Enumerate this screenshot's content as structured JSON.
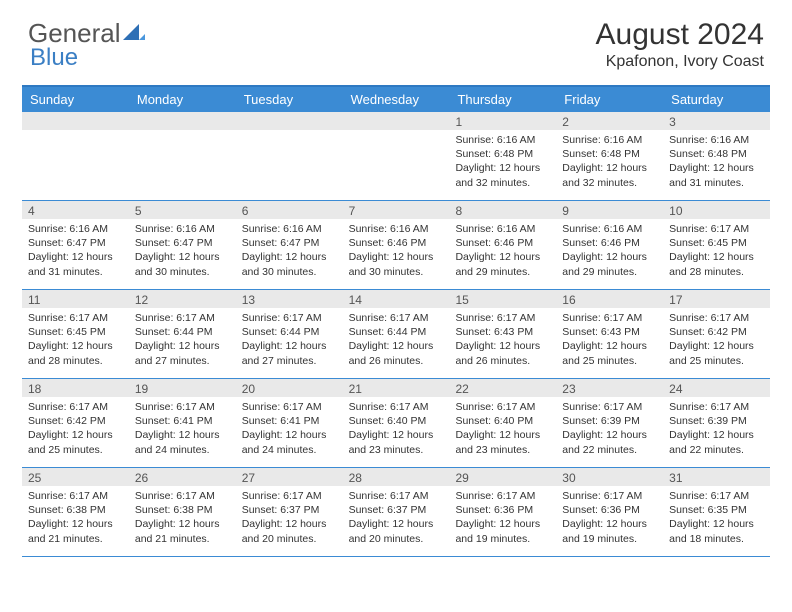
{
  "brand": {
    "part1": "General",
    "part2": "Blue"
  },
  "title": "August 2024",
  "location": "Kpafonon, Ivory Coast",
  "colors": {
    "header_bar": "#3b8bd4",
    "rule": "#2e79c2",
    "daynum_bg": "#e9e9e9",
    "text": "#333333",
    "brand_blue": "#3b7fc4"
  },
  "dow": [
    "Sunday",
    "Monday",
    "Tuesday",
    "Wednesday",
    "Thursday",
    "Friday",
    "Saturday"
  ],
  "weeks": [
    [
      {
        "n": "",
        "sr": "",
        "ss": "",
        "dl": ""
      },
      {
        "n": "",
        "sr": "",
        "ss": "",
        "dl": ""
      },
      {
        "n": "",
        "sr": "",
        "ss": "",
        "dl": ""
      },
      {
        "n": "",
        "sr": "",
        "ss": "",
        "dl": ""
      },
      {
        "n": "1",
        "sr": "Sunrise: 6:16 AM",
        "ss": "Sunset: 6:48 PM",
        "dl": "Daylight: 12 hours and 32 minutes."
      },
      {
        "n": "2",
        "sr": "Sunrise: 6:16 AM",
        "ss": "Sunset: 6:48 PM",
        "dl": "Daylight: 12 hours and 32 minutes."
      },
      {
        "n": "3",
        "sr": "Sunrise: 6:16 AM",
        "ss": "Sunset: 6:48 PM",
        "dl": "Daylight: 12 hours and 31 minutes."
      }
    ],
    [
      {
        "n": "4",
        "sr": "Sunrise: 6:16 AM",
        "ss": "Sunset: 6:47 PM",
        "dl": "Daylight: 12 hours and 31 minutes."
      },
      {
        "n": "5",
        "sr": "Sunrise: 6:16 AM",
        "ss": "Sunset: 6:47 PM",
        "dl": "Daylight: 12 hours and 30 minutes."
      },
      {
        "n": "6",
        "sr": "Sunrise: 6:16 AM",
        "ss": "Sunset: 6:47 PM",
        "dl": "Daylight: 12 hours and 30 minutes."
      },
      {
        "n": "7",
        "sr": "Sunrise: 6:16 AM",
        "ss": "Sunset: 6:46 PM",
        "dl": "Daylight: 12 hours and 30 minutes."
      },
      {
        "n": "8",
        "sr": "Sunrise: 6:16 AM",
        "ss": "Sunset: 6:46 PM",
        "dl": "Daylight: 12 hours and 29 minutes."
      },
      {
        "n": "9",
        "sr": "Sunrise: 6:16 AM",
        "ss": "Sunset: 6:46 PM",
        "dl": "Daylight: 12 hours and 29 minutes."
      },
      {
        "n": "10",
        "sr": "Sunrise: 6:17 AM",
        "ss": "Sunset: 6:45 PM",
        "dl": "Daylight: 12 hours and 28 minutes."
      }
    ],
    [
      {
        "n": "11",
        "sr": "Sunrise: 6:17 AM",
        "ss": "Sunset: 6:45 PM",
        "dl": "Daylight: 12 hours and 28 minutes."
      },
      {
        "n": "12",
        "sr": "Sunrise: 6:17 AM",
        "ss": "Sunset: 6:44 PM",
        "dl": "Daylight: 12 hours and 27 minutes."
      },
      {
        "n": "13",
        "sr": "Sunrise: 6:17 AM",
        "ss": "Sunset: 6:44 PM",
        "dl": "Daylight: 12 hours and 27 minutes."
      },
      {
        "n": "14",
        "sr": "Sunrise: 6:17 AM",
        "ss": "Sunset: 6:44 PM",
        "dl": "Daylight: 12 hours and 26 minutes."
      },
      {
        "n": "15",
        "sr": "Sunrise: 6:17 AM",
        "ss": "Sunset: 6:43 PM",
        "dl": "Daylight: 12 hours and 26 minutes."
      },
      {
        "n": "16",
        "sr": "Sunrise: 6:17 AM",
        "ss": "Sunset: 6:43 PM",
        "dl": "Daylight: 12 hours and 25 minutes."
      },
      {
        "n": "17",
        "sr": "Sunrise: 6:17 AM",
        "ss": "Sunset: 6:42 PM",
        "dl": "Daylight: 12 hours and 25 minutes."
      }
    ],
    [
      {
        "n": "18",
        "sr": "Sunrise: 6:17 AM",
        "ss": "Sunset: 6:42 PM",
        "dl": "Daylight: 12 hours and 25 minutes."
      },
      {
        "n": "19",
        "sr": "Sunrise: 6:17 AM",
        "ss": "Sunset: 6:41 PM",
        "dl": "Daylight: 12 hours and 24 minutes."
      },
      {
        "n": "20",
        "sr": "Sunrise: 6:17 AM",
        "ss": "Sunset: 6:41 PM",
        "dl": "Daylight: 12 hours and 24 minutes."
      },
      {
        "n": "21",
        "sr": "Sunrise: 6:17 AM",
        "ss": "Sunset: 6:40 PM",
        "dl": "Daylight: 12 hours and 23 minutes."
      },
      {
        "n": "22",
        "sr": "Sunrise: 6:17 AM",
        "ss": "Sunset: 6:40 PM",
        "dl": "Daylight: 12 hours and 23 minutes."
      },
      {
        "n": "23",
        "sr": "Sunrise: 6:17 AM",
        "ss": "Sunset: 6:39 PM",
        "dl": "Daylight: 12 hours and 22 minutes."
      },
      {
        "n": "24",
        "sr": "Sunrise: 6:17 AM",
        "ss": "Sunset: 6:39 PM",
        "dl": "Daylight: 12 hours and 22 minutes."
      }
    ],
    [
      {
        "n": "25",
        "sr": "Sunrise: 6:17 AM",
        "ss": "Sunset: 6:38 PM",
        "dl": "Daylight: 12 hours and 21 minutes."
      },
      {
        "n": "26",
        "sr": "Sunrise: 6:17 AM",
        "ss": "Sunset: 6:38 PM",
        "dl": "Daylight: 12 hours and 21 minutes."
      },
      {
        "n": "27",
        "sr": "Sunrise: 6:17 AM",
        "ss": "Sunset: 6:37 PM",
        "dl": "Daylight: 12 hours and 20 minutes."
      },
      {
        "n": "28",
        "sr": "Sunrise: 6:17 AM",
        "ss": "Sunset: 6:37 PM",
        "dl": "Daylight: 12 hours and 20 minutes."
      },
      {
        "n": "29",
        "sr": "Sunrise: 6:17 AM",
        "ss": "Sunset: 6:36 PM",
        "dl": "Daylight: 12 hours and 19 minutes."
      },
      {
        "n": "30",
        "sr": "Sunrise: 6:17 AM",
        "ss": "Sunset: 6:36 PM",
        "dl": "Daylight: 12 hours and 19 minutes."
      },
      {
        "n": "31",
        "sr": "Sunrise: 6:17 AM",
        "ss": "Sunset: 6:35 PM",
        "dl": "Daylight: 12 hours and 18 minutes."
      }
    ]
  ]
}
